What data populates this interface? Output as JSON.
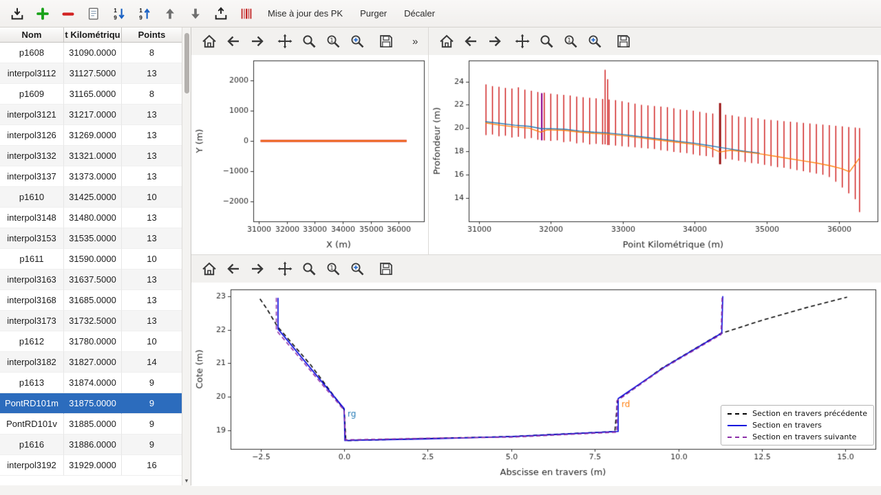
{
  "toolbar": {
    "icons": [
      "import",
      "add",
      "remove",
      "edit-list",
      "sort-descending",
      "sort-ascending",
      "move-up",
      "move-down",
      "export",
      "barcode"
    ],
    "menu_items": [
      "Mise à jour des PK",
      "Purger",
      "Décaler"
    ]
  },
  "table": {
    "columns": [
      "Nom",
      "t Kilométriqu",
      "Points"
    ],
    "selected_row": 17,
    "rows": [
      [
        "p1608",
        "31090.0000",
        "8"
      ],
      [
        "interpol3112",
        "31127.5000",
        "13"
      ],
      [
        "p1609",
        "31165.0000",
        "8"
      ],
      [
        "interpol3121",
        "31217.0000",
        "13"
      ],
      [
        "interpol3126",
        "31269.0000",
        "13"
      ],
      [
        "interpol3132",
        "31321.0000",
        "13"
      ],
      [
        "interpol3137",
        "31373.0000",
        "13"
      ],
      [
        "p1610",
        "31425.0000",
        "10"
      ],
      [
        "interpol3148",
        "31480.0000",
        "13"
      ],
      [
        "interpol3153",
        "31535.0000",
        "13"
      ],
      [
        "p1611",
        "31590.0000",
        "10"
      ],
      [
        "interpol3163",
        "31637.5000",
        "13"
      ],
      [
        "interpol3168",
        "31685.0000",
        "13"
      ],
      [
        "interpol3173",
        "31732.5000",
        "13"
      ],
      [
        "p1612",
        "31780.0000",
        "10"
      ],
      [
        "interpol3182",
        "31827.0000",
        "14"
      ],
      [
        "p1613",
        "31874.0000",
        "9"
      ],
      [
        "PontRD101m",
        "31875.0000",
        "9"
      ],
      [
        "PontRD101v",
        "31885.0000",
        "9"
      ],
      [
        "p1616",
        "31886.0000",
        "9"
      ],
      [
        "interpol3192",
        "31929.0000",
        "16"
      ]
    ]
  },
  "plot_toolbars": {
    "plan": {
      "icons": [
        "home",
        "back",
        "forward",
        "pan",
        "zoom",
        "zoom-one",
        "zoom-plus",
        "save"
      ],
      "overflow": "»"
    },
    "long": {
      "icons": [
        "home",
        "back",
        "forward",
        "pan",
        "zoom",
        "zoom-one",
        "zoom-plus",
        "save"
      ]
    },
    "cross": {
      "icons": [
        "home",
        "back",
        "forward",
        "pan",
        "zoom",
        "zoom-one",
        "zoom-plus",
        "save"
      ]
    }
  },
  "colors": {
    "selection": "#2c6cbd",
    "bars_red": "#cc1111",
    "line_blue": "#1f77b4",
    "line_orange": "#ff7f0e",
    "section_blue": "#0000dd",
    "section_purple": "#8b2da8"
  },
  "chart_data": [
    {
      "key": "plan",
      "type": "line",
      "xlabel": "X (m)",
      "ylabel": "Y (m)",
      "xlim": [
        30800,
        36900
      ],
      "ylim": [
        -2660,
        2660
      ],
      "xticks": [
        31000,
        32000,
        33000,
        34000,
        35000,
        36000
      ],
      "xtick_labels": [
        "31000",
        "32000",
        "33000",
        "34000",
        "35000",
        "36000"
      ],
      "yticks": [
        -2000,
        -1000,
        0,
        1000,
        2000
      ],
      "ytick_labels": [
        "−2000",
        "−1000",
        "0",
        "1000",
        "2000"
      ],
      "series": [
        {
          "name": "sections-marks",
          "color": "#cc1111",
          "width": 3,
          "points": [
            [
              31060,
              0
            ],
            [
              36280,
              0
            ]
          ]
        },
        {
          "name": "axe-trace",
          "color": "#ff7f0e",
          "width": 1.6,
          "points": [
            [
              31060,
              0
            ],
            [
              36280,
              0
            ]
          ]
        }
      ]
    },
    {
      "key": "long",
      "type": "line",
      "xlabel": "Point Kilométrique (m)",
      "ylabel": "Profondeur (m)",
      "xlim": [
        30860,
        36540
      ],
      "ylim": [
        12.0,
        25.8
      ],
      "xticks": [
        31000,
        32000,
        33000,
        34000,
        35000,
        36000
      ],
      "xtick_labels": [
        "31000",
        "32000",
        "33000",
        "34000",
        "35000",
        "36000"
      ],
      "yticks": [
        14,
        16,
        18,
        20,
        22,
        24
      ],
      "ytick_labels": [
        "14",
        "16",
        "18",
        "20",
        "22",
        "24"
      ],
      "bars": {
        "color": "#cc1111",
        "width": 1.4,
        "data": [
          [
            31100,
            19.4,
            23.75
          ],
          [
            31190,
            19.45,
            23.6
          ],
          [
            31280,
            19.3,
            23.55
          ],
          [
            31370,
            19.35,
            23.45
          ],
          [
            31460,
            19.2,
            23.4
          ],
          [
            31550,
            19.25,
            23.5
          ],
          [
            31640,
            19.1,
            23.3
          ],
          [
            31730,
            19.15,
            23.2
          ],
          [
            31820,
            19.0,
            23.1
          ],
          [
            31910,
            18.95,
            23.05
          ],
          [
            32000,
            18.9,
            22.95
          ],
          [
            32090,
            18.95,
            22.9
          ],
          [
            32180,
            18.8,
            22.85
          ],
          [
            32270,
            18.85,
            22.8
          ],
          [
            32360,
            18.7,
            22.7
          ],
          [
            32450,
            18.75,
            22.65
          ],
          [
            32540,
            18.6,
            22.6
          ],
          [
            32630,
            18.65,
            22.55
          ],
          [
            32720,
            18.6,
            22.5
          ],
          [
            32810,
            18.55,
            22.45
          ],
          [
            32900,
            18.5,
            22.4
          ],
          [
            32990,
            18.45,
            22.3
          ],
          [
            33080,
            18.4,
            22.2
          ],
          [
            33170,
            18.35,
            22.1
          ],
          [
            33260,
            18.3,
            22.0
          ],
          [
            33350,
            18.25,
            21.95
          ],
          [
            33440,
            18.2,
            21.9
          ],
          [
            33530,
            18.1,
            21.85
          ],
          [
            33620,
            18.05,
            21.8
          ],
          [
            33710,
            17.95,
            21.7
          ],
          [
            33800,
            17.9,
            21.6
          ],
          [
            33890,
            17.85,
            21.55
          ],
          [
            33980,
            17.75,
            21.5
          ],
          [
            34070,
            17.65,
            21.4
          ],
          [
            34160,
            17.6,
            21.3
          ],
          [
            34250,
            17.5,
            21.25
          ],
          [
            34430,
            17.35,
            21.15
          ],
          [
            34520,
            17.3,
            21.1
          ],
          [
            34610,
            17.2,
            21.0
          ],
          [
            34700,
            17.1,
            20.95
          ],
          [
            34790,
            17.0,
            20.9
          ],
          [
            34880,
            16.95,
            20.85
          ],
          [
            34970,
            16.85,
            20.75
          ],
          [
            35060,
            16.75,
            20.7
          ],
          [
            35150,
            16.65,
            20.65
          ],
          [
            35240,
            16.6,
            20.6
          ],
          [
            35330,
            16.5,
            20.55
          ],
          [
            35420,
            16.4,
            20.5
          ],
          [
            35510,
            16.3,
            20.45
          ],
          [
            35600,
            16.2,
            20.4
          ],
          [
            35690,
            16.1,
            20.35
          ],
          [
            35780,
            16.0,
            20.3
          ],
          [
            35870,
            15.8,
            20.25
          ],
          [
            35960,
            15.4,
            20.2
          ],
          [
            36050,
            14.9,
            20.15
          ],
          [
            36140,
            14.4,
            20.1
          ],
          [
            36230,
            13.9,
            20.05
          ]
        ]
      },
      "extra_bars": [
        {
          "x": 31875,
          "lo": 18.95,
          "hi": 23.0,
          "color": "#8b008b",
          "width": 2.2
        },
        {
          "x": 32755,
          "lo": 18.6,
          "hi": 25.0,
          "color": "#cc1111",
          "width": 1.4
        },
        {
          "x": 32790,
          "lo": 18.55,
          "hi": 24.2,
          "color": "#cc1111",
          "width": 1.4
        },
        {
          "x": 34352,
          "lo": 16.9,
          "hi": 22.15,
          "color": "#991111",
          "width": 3
        },
        {
          "x": 36290,
          "lo": 12.8,
          "hi": 20.0,
          "color": "#cc1111",
          "width": 1.4
        }
      ],
      "series": [
        {
          "name": "fond-bleu",
          "color": "#1f77b4",
          "width": 1.4,
          "points": [
            [
              31090,
              20.55
            ],
            [
              31300,
              20.4
            ],
            [
              31500,
              20.25
            ],
            [
              31700,
              20.15
            ],
            [
              31875,
              19.95
            ],
            [
              32000,
              19.95
            ],
            [
              32200,
              19.9
            ],
            [
              32400,
              19.75
            ],
            [
              32600,
              19.65
            ],
            [
              32760,
              19.6
            ],
            [
              33000,
              19.45
            ],
            [
              33200,
              19.3
            ],
            [
              33400,
              19.15
            ],
            [
              33600,
              19.0
            ],
            [
              33800,
              18.85
            ],
            [
              34000,
              18.7
            ],
            [
              34200,
              18.5
            ],
            [
              34350,
              18.35
            ],
            [
              34500,
              18.2
            ],
            [
              34700,
              18.0
            ],
            [
              34900,
              17.85
            ]
          ]
        },
        {
          "name": "fond-orange",
          "color": "#ff7f0e",
          "width": 1.4,
          "points": [
            [
              31090,
              20.45
            ],
            [
              31300,
              20.25
            ],
            [
              31500,
              20.1
            ],
            [
              31700,
              20.0
            ],
            [
              31860,
              19.65
            ],
            [
              31950,
              19.85
            ],
            [
              32200,
              19.8
            ],
            [
              32400,
              19.65
            ],
            [
              32600,
              19.55
            ],
            [
              32760,
              19.5
            ],
            [
              33000,
              19.35
            ],
            [
              33200,
              19.2
            ],
            [
              33400,
              19.05
            ],
            [
              33600,
              18.9
            ],
            [
              33800,
              18.75
            ],
            [
              34000,
              18.6
            ],
            [
              34200,
              18.35
            ],
            [
              34350,
              17.95
            ],
            [
              34500,
              18.1
            ],
            [
              34700,
              17.95
            ],
            [
              34900,
              17.8
            ],
            [
              35100,
              17.6
            ],
            [
              35300,
              17.4
            ],
            [
              35500,
              17.2
            ],
            [
              35700,
              17.0
            ],
            [
              35900,
              16.75
            ],
            [
              36050,
              16.5
            ],
            [
              36150,
              16.25
            ],
            [
              36290,
              17.45
            ]
          ]
        }
      ]
    },
    {
      "key": "cross",
      "type": "line",
      "xlabel": "Abscisse en travers (m)",
      "ylabel": "Cote (m)",
      "xlim": [
        -3.4,
        15.9
      ],
      "ylim": [
        18.45,
        23.2
      ],
      "xticks": [
        -2.5,
        0,
        2.5,
        5,
        7.5,
        10,
        12.5,
        15
      ],
      "xtick_labels": [
        "−2.5",
        "0.0",
        "2.5",
        "5.0",
        "7.5",
        "10.0",
        "12.5",
        "15.0"
      ],
      "yticks": [
        19,
        20,
        21,
        22,
        23
      ],
      "ytick_labels": [
        "19",
        "20",
        "21",
        "22",
        "23"
      ],
      "series": [
        {
          "name": "section-precedente",
          "color": "#000000",
          "width": 1.6,
          "dash": [
            6,
            4
          ],
          "points": [
            [
              -2.52,
              22.92
            ],
            [
              -2.3,
              22.6
            ],
            [
              -2.0,
              22.1
            ],
            [
              -1.0,
              20.95
            ],
            [
              0.0,
              19.62
            ],
            [
              0.05,
              18.7
            ],
            [
              2.5,
              18.76
            ],
            [
              5.0,
              18.82
            ],
            [
              8.1,
              18.97
            ],
            [
              8.18,
              19.9
            ],
            [
              9.5,
              20.85
            ],
            [
              11.25,
              21.88
            ],
            [
              12.5,
              22.28
            ],
            [
              13.8,
              22.65
            ],
            [
              15.05,
              22.97
            ]
          ]
        },
        {
          "name": "section-courante",
          "color": "#0000dd",
          "width": 1.6,
          "points": [
            [
              -1.98,
              22.95
            ],
            [
              -1.98,
              22.02
            ],
            [
              0.0,
              19.65
            ],
            [
              0.02,
              18.7
            ],
            [
              2.5,
              18.75
            ],
            [
              5.0,
              18.82
            ],
            [
              8.2,
              18.97
            ],
            [
              8.2,
              19.95
            ],
            [
              9.6,
              20.9
            ],
            [
              11.3,
              21.9
            ],
            [
              11.33,
              23.0
            ]
          ]
        },
        {
          "name": "section-suivante",
          "color": "#8b2da8",
          "width": 1.6,
          "dash": [
            6,
            4
          ],
          "points": [
            [
              -2.03,
              22.95
            ],
            [
              -2.03,
              21.98
            ],
            [
              0.0,
              19.6
            ],
            [
              0.04,
              18.72
            ],
            [
              2.5,
              18.77
            ],
            [
              5.0,
              18.8
            ],
            [
              8.16,
              18.95
            ],
            [
              8.16,
              19.88
            ],
            [
              9.55,
              20.85
            ],
            [
              11.28,
              21.86
            ],
            [
              11.31,
              22.98
            ]
          ]
        }
      ],
      "annotations": [
        {
          "text": "rg",
          "x": 0.1,
          "y": 19.42,
          "color": "#1f77b4"
        },
        {
          "text": "rd",
          "x": 8.3,
          "y": 19.7,
          "color": "#ff7f0e"
        }
      ],
      "legend": {
        "entries": [
          {
            "label": "Section en travers précédente",
            "color": "#000000",
            "dash": true
          },
          {
            "label": "Section en travers",
            "color": "#0000dd",
            "dash": false
          },
          {
            "label": "Section en travers suivante",
            "color": "#8b2da8",
            "dash": true
          }
        ]
      }
    }
  ]
}
